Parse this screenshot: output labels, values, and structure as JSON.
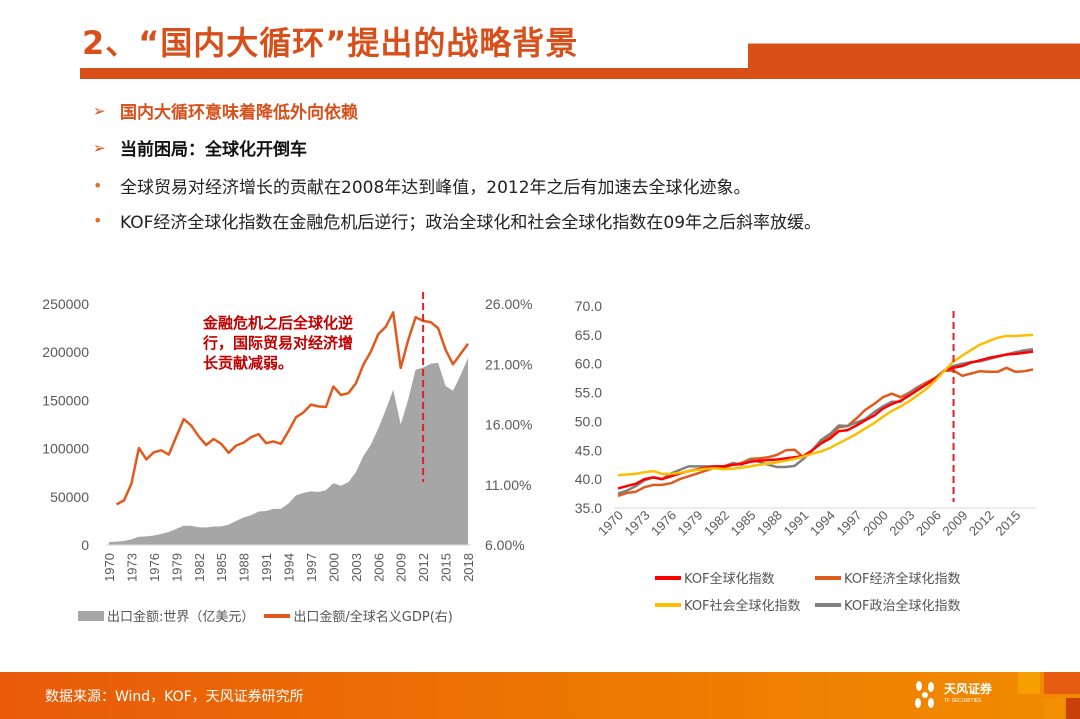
{
  "header": {
    "title": "2、“国内大循环”提出的战略背景"
  },
  "bullets": [
    {
      "marker": "➢",
      "text": "国内大循环意味着降低外向依赖"
    },
    {
      "marker": "➢",
      "text": "当前困局：全球化开倒车"
    },
    {
      "marker": "•",
      "text": "全球贸易对经济增长的贡献在2008年达到峰值，2012年之后有加速去全球化迹象。"
    },
    {
      "marker": "•",
      "text": "KOF经济全球化指数在金融危机后逆行；政治全球化和社会全球化指数在09年之后斜率放缓。"
    }
  ],
  "footer": {
    "source": "数据来源：Wind，KOF，天风证券研究所",
    "logo_text": "天风证券",
    "logo_sub": "TF SECURITIES"
  },
  "chart_data": [
    {
      "type": "area+line",
      "annotation": "金融危机之后全球化逆行，国际贸易对经济增长贡献减弱。",
      "marker_line_year": 2012,
      "x": [
        1970,
        1971,
        1972,
        1973,
        1974,
        1975,
        1976,
        1977,
        1978,
        1979,
        1980,
        1981,
        1982,
        1983,
        1984,
        1985,
        1986,
        1987,
        1988,
        1989,
        1990,
        1991,
        1992,
        1993,
        1994,
        1995,
        1996,
        1997,
        1998,
        1999,
        2000,
        2001,
        2002,
        2003,
        2004,
        2005,
        2006,
        2007,
        2008,
        2009,
        2010,
        2011,
        2012,
        2013,
        2014,
        2015,
        2016,
        2017,
        2018
      ],
      "x_tick_labels": [
        "1970",
        "1973",
        "1976",
        "1979",
        "1982",
        "1985",
        "1988",
        "1991",
        "1994",
        "1997",
        "2000",
        "2003",
        "2006",
        "2009",
        "2012",
        "2015",
        "2018"
      ],
      "y_left": {
        "ylim": [
          0,
          250000
        ],
        "tick_labels": [
          "0",
          "50000",
          "100000",
          "150000",
          "200000",
          "250000"
        ]
      },
      "y_right": {
        "ylim": [
          6,
          26
        ],
        "tick_labels": [
          "6.00%",
          "11.00%",
          "16.00%",
          "21.00%",
          "26.00%"
        ]
      },
      "legend_position": "bottom",
      "series": [
        {
          "name": "出口金额:世界（亿美元）",
          "axis": "left",
          "kind": "area",
          "color": "#a6a6a6",
          "values": [
            3000,
            3500,
            4200,
            5800,
            8500,
            8900,
            9900,
            11500,
            13500,
            16700,
            20000,
            19800,
            18500,
            18200,
            19200,
            19300,
            21200,
            25000,
            28500,
            30800,
            34800,
            35300,
            37500,
            37600,
            43000,
            51500,
            54000,
            55800,
            55000,
            57000,
            64000,
            61500,
            65000,
            75500,
            92000,
            104000,
            121000,
            140000,
            161000,
            125000,
            151000,
            182000,
            184000,
            188000,
            189000,
            165000,
            160000,
            176000,
            194000
          ]
        },
        {
          "name": "出口金额/全球名义GDP(右)",
          "axis": "right",
          "kind": "line",
          "color": "#e05a1e",
          "values": [
            null,
            9.37,
            9.7,
            11.08,
            14.05,
            13.1,
            13.7,
            13.86,
            13.5,
            15.0,
            16.45,
            15.9,
            15.0,
            14.3,
            14.8,
            14.4,
            13.65,
            14.25,
            14.5,
            14.95,
            15.2,
            14.45,
            14.6,
            14.4,
            15.45,
            16.6,
            17.0,
            17.65,
            17.5,
            17.45,
            19.15,
            18.45,
            18.6,
            19.4,
            20.95,
            22.05,
            23.5,
            24.1,
            25.3,
            20.7,
            23.0,
            24.9,
            24.6,
            24.5,
            24.0,
            22.2,
            21.0,
            21.85,
            22.7
          ]
        }
      ]
    },
    {
      "type": "line",
      "marker_line_year": 2008,
      "x": [
        1970,
        1971,
        1972,
        1973,
        1974,
        1975,
        1976,
        1977,
        1978,
        1979,
        1980,
        1981,
        1982,
        1983,
        1984,
        1985,
        1986,
        1987,
        1988,
        1989,
        1990,
        1991,
        1992,
        1993,
        1994,
        1995,
        1996,
        1997,
        1998,
        1999,
        2000,
        2001,
        2002,
        2003,
        2004,
        2005,
        2006,
        2007,
        2008,
        2009,
        2010,
        2011,
        2012,
        2013,
        2014,
        2015,
        2016,
        2017
      ],
      "x_tick_labels": [
        "1970",
        "1973",
        "1976",
        "1979",
        "1982",
        "1985",
        "1988",
        "1991",
        "1994",
        "1997",
        "2000",
        "2003",
        "2006",
        "2009",
        "2012",
        "2015"
      ],
      "ylim": [
        35,
        70
      ],
      "y_tick_labels": [
        "35.0",
        "40.0",
        "45.0",
        "50.0",
        "55.0",
        "60.0",
        "65.0",
        "70.0"
      ],
      "legend_position": "bottom",
      "series": [
        {
          "name": "KOF全球化指数",
          "color": "#ff0000",
          "values": [
            38.4,
            38.8,
            39.2,
            40.0,
            40.3,
            40.0,
            40.5,
            41.0,
            41.4,
            41.7,
            42.0,
            42.2,
            42.2,
            42.5,
            42.6,
            43.0,
            43.2,
            43.3,
            43.4,
            43.6,
            43.8,
            44.0,
            45.0,
            46.2,
            47.0,
            48.3,
            48.5,
            49.3,
            50.2,
            51.0,
            52.2,
            53.0,
            53.6,
            54.5,
            55.5,
            56.5,
            57.5,
            58.8,
            59.3,
            59.6,
            60.2,
            60.6,
            61.0,
            61.3,
            61.6,
            61.7,
            61.9,
            62.1
          ]
        },
        {
          "name": "KOF经济全球化指数",
          "color": "#e05a1e",
          "values": [
            37.1,
            37.6,
            37.8,
            38.6,
            39.0,
            39.0,
            39.3,
            40.0,
            40.5,
            41.0,
            41.5,
            42.0,
            42.0,
            42.5,
            42.8,
            43.5,
            43.6,
            43.8,
            44.2,
            45.0,
            45.1,
            43.8,
            45.0,
            46.5,
            47.5,
            49.0,
            49.2,
            50.5,
            52.0,
            53.0,
            54.2,
            54.8,
            54.2,
            55.0,
            56.0,
            56.8,
            57.6,
            58.8,
            58.8,
            57.9,
            58.3,
            58.7,
            58.6,
            58.6,
            59.3,
            58.6,
            58.7,
            59.0
          ]
        },
        {
          "name": "KOF社会全球化指数",
          "color": "#fbbf00",
          "values": [
            40.7,
            40.8,
            40.9,
            41.2,
            41.4,
            40.9,
            40.9,
            41.1,
            41.4,
            41.6,
            41.8,
            41.9,
            41.7,
            41.8,
            42.0,
            42.2,
            42.5,
            42.7,
            42.9,
            43.2,
            43.5,
            43.9,
            44.4,
            44.8,
            45.4,
            46.2,
            47.0,
            47.8,
            48.8,
            49.7,
            50.8,
            51.8,
            52.6,
            53.5,
            54.6,
            55.7,
            57.2,
            58.8,
            60.4,
            61.4,
            62.4,
            63.3,
            63.9,
            64.5,
            64.8,
            64.8,
            64.9,
            65.0
          ]
        },
        {
          "name": "KOF政治全球化指数",
          "color": "#808080",
          "values": [
            37.5,
            38.0,
            38.8,
            39.8,
            40.3,
            40.0,
            41.0,
            41.6,
            42.2,
            42.2,
            42.2,
            42.2,
            42.2,
            42.8,
            42.5,
            43.3,
            43.0,
            42.5,
            42.1,
            42.1,
            42.3,
            43.5,
            45.0,
            46.8,
            47.8,
            49.3,
            49.2,
            49.8,
            50.4,
            51.6,
            52.6,
            53.4,
            53.4,
            54.8,
            55.8,
            56.5,
            57.6,
            58.9,
            59.6,
            60.0,
            60.3,
            60.4,
            60.8,
            61.2,
            61.6,
            62.0,
            62.3,
            62.5
          ]
        }
      ]
    }
  ]
}
